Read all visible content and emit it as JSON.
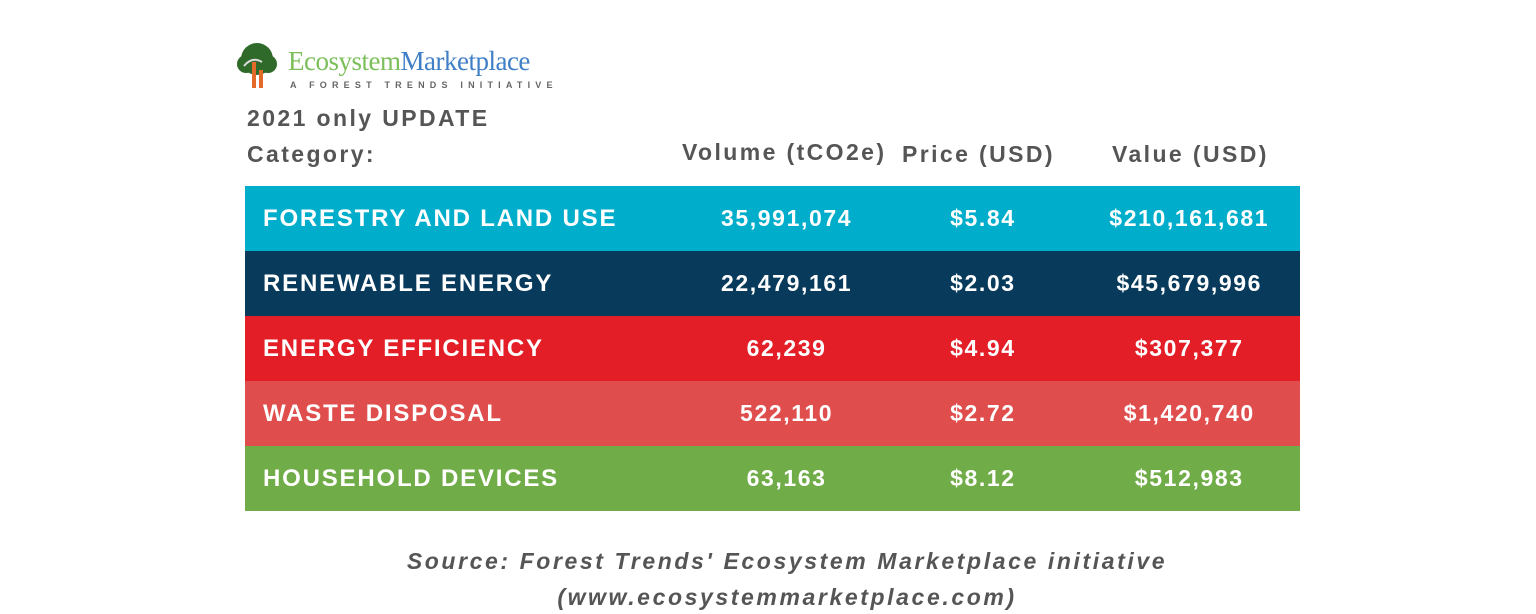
{
  "logo": {
    "name_part1": "Ecosystem",
    "name_part2": "Marketplace",
    "tagline": "A FOREST TRENDS INITIATIVE"
  },
  "header": {
    "subtitle": "2021 only UPDATE",
    "category_label": "Category:"
  },
  "chart_data": {
    "type": "table",
    "title": "2021 only UPDATE",
    "columns": [
      "Category:",
      "Volume (tCO2e)",
      "Price (USD)",
      "Value (USD)"
    ],
    "rows": [
      {
        "category": "FORESTRY AND LAND USE",
        "volume": "35,991,074",
        "price": "$5.84",
        "value": "$210,161,681",
        "color": "#00aecb"
      },
      {
        "category": "RENEWABLE ENERGY",
        "volume": "22,479,161",
        "price": "$2.03",
        "value": "$45,679,996",
        "color": "#083a5c"
      },
      {
        "category": "ENERGY EFFICIENCY",
        "volume": "62,239",
        "price": "$4.94",
        "value": "$307,377",
        "color": "#e31e26"
      },
      {
        "category": "WASTE DISPOSAL",
        "volume": "522,110",
        "price": "$2.72",
        "value": "$1,420,740",
        "color": "#df4e4d"
      },
      {
        "category": "HOUSEHOLD DEVICES",
        "volume": "63,163",
        "price": "$8.12",
        "value": "$512,983",
        "color": "#70ac48"
      }
    ]
  },
  "source": {
    "line1": "Source: Forest Trends' Ecosystem Marketplace initiative",
    "line2": "(www.ecosystemmarketplace.com)"
  }
}
